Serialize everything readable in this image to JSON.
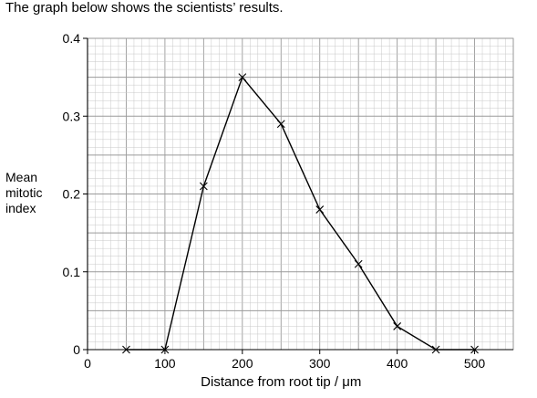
{
  "intro_text": "The graph below shows the scientists’ results.",
  "chart_data": {
    "type": "line",
    "title": "",
    "xlabel": "Distance from root tip / μm",
    "ylabel_lines": [
      "Mean",
      "mitotic",
      "index"
    ],
    "x": [
      50,
      100,
      150,
      200,
      250,
      300,
      350,
      400,
      450,
      500
    ],
    "y": [
      0,
      0,
      0.21,
      0.35,
      0.29,
      0.18,
      0.11,
      0.03,
      0,
      0
    ],
    "xlim": [
      0,
      550
    ],
    "ylim": [
      0,
      0.4
    ],
    "x_ticks": [
      0,
      100,
      200,
      300,
      400,
      500
    ],
    "x_tick_labels": [
      "0",
      "100",
      "200",
      "300",
      "400",
      "500"
    ],
    "y_ticks": [
      0,
      0.1,
      0.2,
      0.3,
      0.4
    ],
    "y_tick_labels": [
      "0",
      "0.1",
      "0.2",
      "0.3",
      "0.4"
    ],
    "marker": "cross",
    "grid": true,
    "minor_grid": true,
    "line_color": "#000000",
    "grid_color": "#c8c8c8"
  }
}
